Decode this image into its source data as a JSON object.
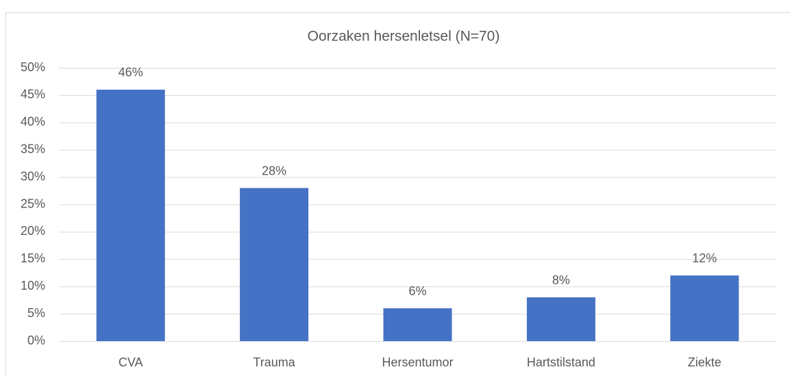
{
  "chart_data": {
    "type": "bar",
    "title": "Oorzaken hersenletsel (N=70)",
    "categories": [
      "CVA",
      "Trauma",
      "Hersentumor",
      "Hartstilstand",
      "Ziekte"
    ],
    "values": [
      46,
      28,
      6,
      8,
      12
    ],
    "value_labels": [
      "46%",
      "28%",
      "6%",
      "8%",
      "12%"
    ],
    "color": "#4472c4",
    "ylim": [
      0,
      50
    ],
    "yticks": [
      {
        "value": 0,
        "label": "0%"
      },
      {
        "value": 5,
        "label": "5%"
      },
      {
        "value": 10,
        "label": "10%"
      },
      {
        "value": 15,
        "label": "15%"
      },
      {
        "value": 20,
        "label": "20%"
      },
      {
        "value": 25,
        "label": "25%"
      },
      {
        "value": 30,
        "label": "30%"
      },
      {
        "value": 35,
        "label": "35%"
      },
      {
        "value": 40,
        "label": "40%"
      },
      {
        "value": 45,
        "label": "45%"
      },
      {
        "value": 50,
        "label": "50%"
      }
    ],
    "grid": true
  }
}
